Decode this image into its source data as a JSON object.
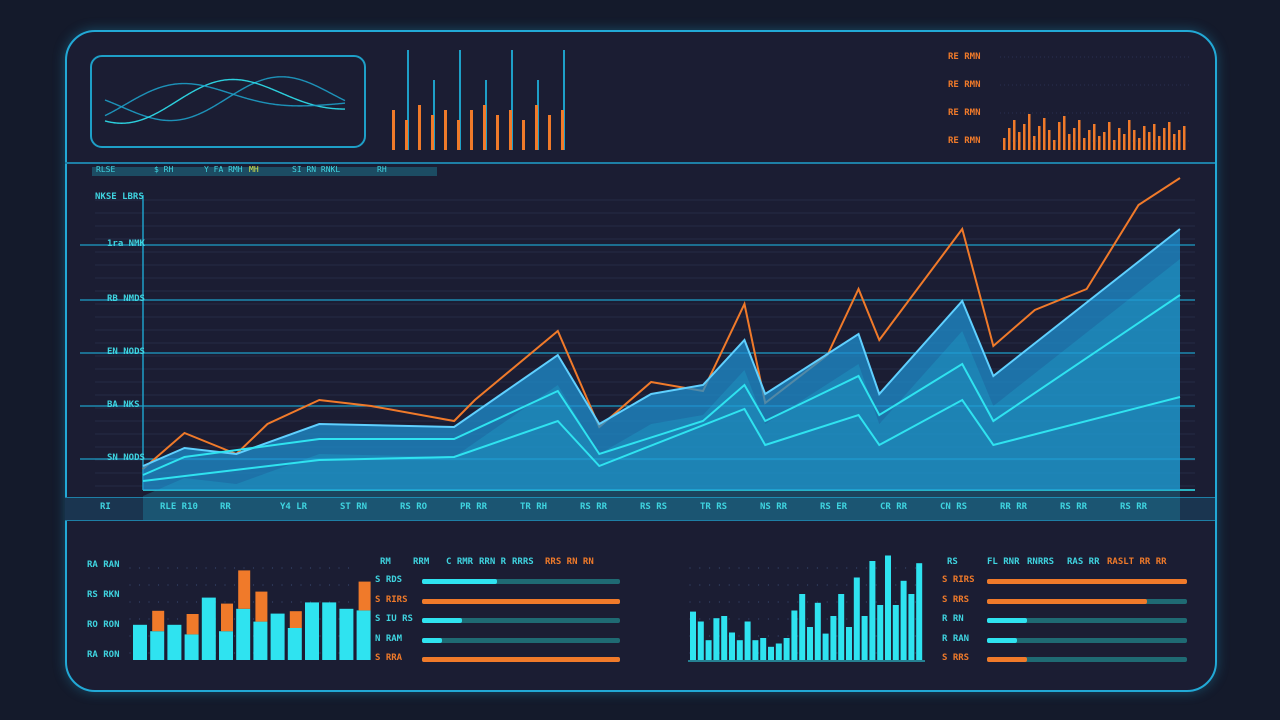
{
  "colors": {
    "accent_cyan": "#2fe3f0",
    "accent_orange": "#f07a2a",
    "area_blue": "#1f8fd0",
    "background": "#141a2b"
  },
  "header_strip": [
    "RLSE",
    "$ RH",
    "Y FA RMH",
    "MH",
    "SI RN RNKL",
    "RH"
  ],
  "top_right_labels": [
    "RE RMN",
    "RE RMN",
    "RE RMN",
    "RE RMN"
  ],
  "chart_data": [
    {
      "type": "area",
      "ytick_labels": [
        "NKSE LBRS",
        "1ra NMK",
        "RB NMDS",
        "EN NODS",
        "BA NKS",
        "SN NODS"
      ],
      "xtick_labels": [
        "RI",
        "RLE R10",
        "RR",
        "Y4 LR",
        "ST RN",
        "RS RO",
        "PR RR",
        "TR RH",
        "RS RR",
        "RS RS",
        "TR RS",
        "NS RR",
        "RS ER",
        "CR RR",
        "CN RS",
        "RR RR",
        "RS RR",
        "RS RR"
      ],
      "ylim": [
        0,
        100
      ],
      "xlim": [
        0,
        100
      ],
      "grid": true,
      "series": [
        {
          "kind": "line",
          "color": "#f07a2a",
          "x": [
            0,
            4,
            9,
            12,
            17,
            22,
            30,
            32,
            40,
            44,
            49,
            54,
            58,
            60,
            66,
            69,
            71,
            79,
            82,
            86,
            91,
            96,
            100
          ],
          "y": [
            7,
            19,
            12,
            22,
            30,
            28,
            23,
            30,
            53,
            21,
            36,
            33,
            62,
            29,
            45,
            67,
            50,
            87,
            48,
            60,
            67,
            95,
            104
          ]
        },
        {
          "kind": "area",
          "color": "#1f8fd0",
          "x": [
            0,
            4,
            9,
            17,
            30,
            40,
            44,
            49,
            54,
            58,
            60,
            69,
            71,
            79,
            82,
            100
          ],
          "y": [
            8,
            14,
            12,
            22,
            21,
            45,
            22,
            32,
            35,
            50,
            32,
            52,
            32,
            63,
            38,
            87
          ]
        },
        {
          "kind": "line",
          "color": "#2fe3f0",
          "x": [
            0,
            4,
            17,
            30,
            40,
            44,
            54,
            58,
            60,
            69,
            71,
            79,
            82,
            100
          ],
          "y": [
            5,
            11,
            17,
            17,
            33,
            12,
            23,
            35,
            23,
            38,
            25,
            42,
            23,
            65
          ]
        },
        {
          "kind": "line",
          "color": "#2fe3f0",
          "x": [
            0,
            17,
            30,
            40,
            44,
            58,
            60,
            69,
            71,
            79,
            82,
            100
          ],
          "y": [
            3,
            10,
            11,
            23,
            8,
            27,
            15,
            25,
            15,
            30,
            15,
            31
          ]
        }
      ]
    },
    {
      "type": "bar",
      "ytick_labels": [
        "RA RAN",
        "RS RKN",
        "RO RON",
        "RA RON"
      ],
      "series": [
        {
          "color": "#2fe3f0",
          "values": [
            22,
            18,
            22,
            16,
            39,
            18,
            32,
            24,
            29,
            20,
            36,
            36,
            32,
            31
          ]
        },
        {
          "color": "#f07a2a",
          "values": [
            0,
            17,
            0,
            17,
            0,
            23,
            32,
            25,
            0,
            14,
            0,
            0,
            0,
            24
          ]
        }
      ]
    },
    {
      "type": "bar",
      "series": [
        {
          "color": "#2fe3f0",
          "values": [
            44,
            35,
            18,
            38,
            40,
            25,
            18,
            35,
            18,
            20,
            12,
            15,
            20,
            45,
            60,
            30,
            52,
            24,
            40,
            60,
            30,
            75,
            40,
            90,
            50,
            95,
            50,
            72,
            60,
            88
          ]
        }
      ]
    },
    {
      "type": "bar",
      "series": [
        {
          "color": "#f07a2a",
          "values": [
            12,
            22,
            30,
            18,
            26,
            36,
            14,
            24,
            32,
            20,
            10,
            28,
            34,
            16,
            22,
            30,
            12,
            20,
            26,
            14,
            18,
            28,
            10,
            22,
            16,
            30,
            20,
            12,
            24,
            18,
            26,
            14,
            22,
            28,
            16,
            20,
            24
          ]
        }
      ]
    },
    {
      "type": "bar",
      "series": [
        {
          "color": "#1e9fc7",
          "values": [
            100,
            70,
            100,
            70,
            100,
            70,
            100
          ]
        },
        {
          "color": "#f07a2a",
          "values": [
            40,
            30,
            45,
            35,
            40,
            30,
            40,
            45,
            35,
            40,
            30,
            45,
            35,
            40
          ]
        }
      ]
    }
  ],
  "progress_left": {
    "header": [
      "RM",
      "RRM",
      "C RMR",
      "RRN R",
      "RRRS",
      "RRS RN RN"
    ],
    "rows": [
      {
        "label": "S RDS",
        "value": 0.38,
        "color": "#2fe3f0"
      },
      {
        "label": "S RIRS",
        "value": 1.0,
        "color": "#f07a2a"
      },
      {
        "label": "S IU RS",
        "value": 0.2,
        "color": "#2fe3f0"
      },
      {
        "label": "N RAM",
        "value": 0.1,
        "color": "#2fe3f0"
      },
      {
        "label": "S RRA",
        "value": 1.0,
        "color": "#f07a2a"
      }
    ]
  },
  "progress_right": {
    "header": [
      "RS",
      "FL RNR",
      "RNRRS",
      "RAS RR",
      "RASLT RR RR"
    ],
    "rows": [
      {
        "label": "S RIRS",
        "value": 1.0,
        "color": "#f07a2a"
      },
      {
        "label": "S RRS",
        "value": 0.8,
        "color": "#f07a2a"
      },
      {
        "label": "R RN",
        "value": 0.2,
        "color": "#2fe3f0"
      },
      {
        "label": "R RAN",
        "value": 0.15,
        "color": "#2fe3f0"
      },
      {
        "label": "S RRS",
        "value": 0.2,
        "color": "#f07a2a"
      }
    ]
  }
}
